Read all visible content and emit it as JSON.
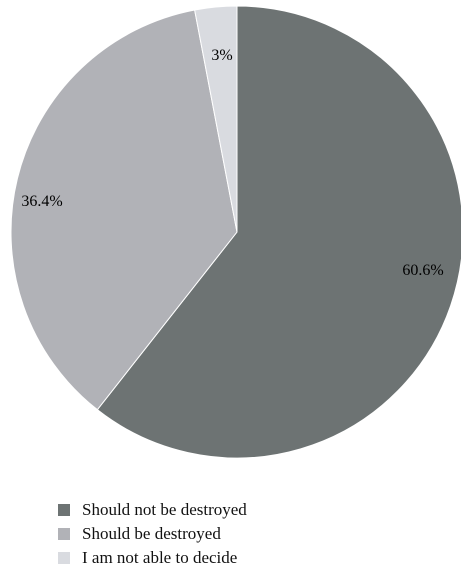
{
  "chart_data": {
    "type": "pie",
    "title": "",
    "start_angle_deg": 0,
    "direction": "clockwise",
    "slices": [
      {
        "name": "Should not be destroyed",
        "value": 60.6,
        "label": "60.6%",
        "color": "#6d7373"
      },
      {
        "name": "Should be destroyed",
        "value": 36.4,
        "label": "36.4%",
        "color": "#b1b2b7"
      },
      {
        "name": "I am not able to decide",
        "value": 3.0,
        "label": "3%",
        "color": "#d9dbe0"
      }
    ],
    "legend": {
      "position": "bottom-left",
      "entries": [
        "Should not be destroyed",
        "Should be destroyed",
        "I am not able to decide"
      ]
    }
  }
}
